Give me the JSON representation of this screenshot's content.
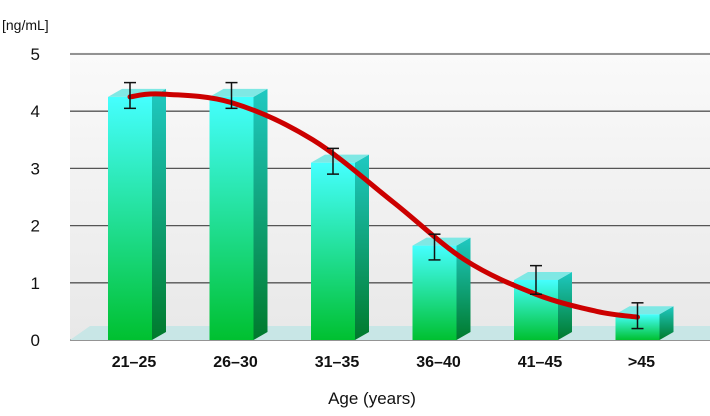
{
  "chart_data": {
    "type": "bar",
    "title": "",
    "unit_label": "[ng/mL]",
    "xlabel": "Age (years)",
    "ylabel": "",
    "ylim": [
      0,
      5
    ],
    "yticks": [
      "0",
      "1",
      "2",
      "3",
      "4",
      "5"
    ],
    "categories": [
      "21–25",
      "26–30",
      "31–35",
      "36–40",
      "41–45",
      ">45"
    ],
    "values": [
      4.25,
      4.25,
      3.1,
      1.65,
      1.05,
      0.45
    ],
    "error_low": [
      4.05,
      4.05,
      2.9,
      1.4,
      0.8,
      0.2
    ],
    "error_high": [
      4.5,
      4.5,
      3.35,
      1.85,
      1.3,
      0.65
    ],
    "trend_line": {
      "x": [
        0,
        0.3,
        1,
        1.8,
        2.6,
        3.3,
        4,
        4.6,
        5
      ],
      "y": [
        4.25,
        4.3,
        4.15,
        3.5,
        2.4,
        1.4,
        0.8,
        0.5,
        0.4
      ]
    },
    "grid": true,
    "colors": {
      "bar_top": "#45ffff",
      "bar_bottom": "#00c030",
      "bar_side_top": "#1fc9c2",
      "bar_side_bottom": "#007a2c",
      "bar_cap": "#7fe8e4",
      "trend": "#cc0000",
      "floor": "#c8e6e6",
      "grid": "#555555",
      "plot_bg": "#f0f0f0"
    }
  }
}
